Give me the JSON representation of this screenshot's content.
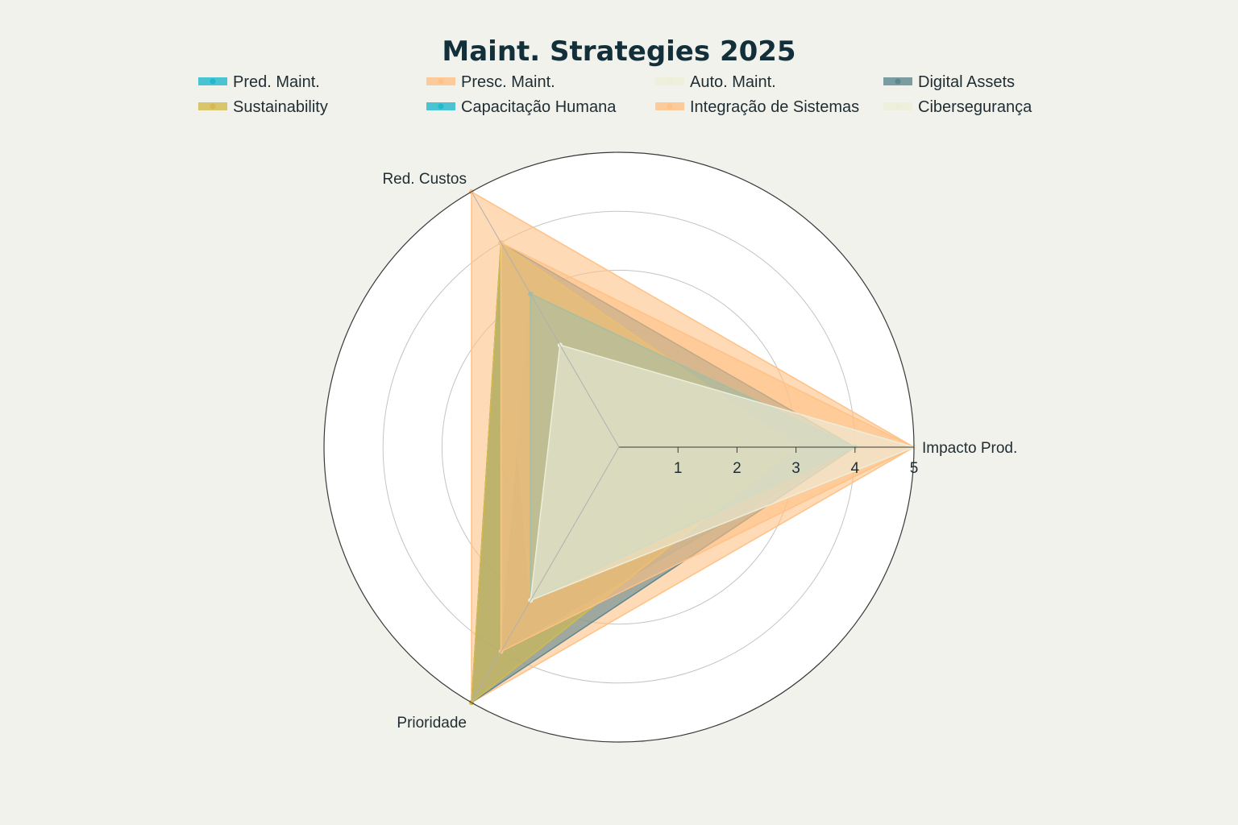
{
  "chart_data": {
    "type": "radar",
    "title": "Maint. Strategies 2025",
    "axes": [
      "Impacto Prod.",
      "Red. Custos",
      "Prioridade"
    ],
    "r_range": [
      0,
      5
    ],
    "r_ticks": [
      "1",
      "2",
      "3",
      "4",
      "5"
    ],
    "grid": true,
    "legend_position": "top",
    "series": [
      {
        "name": "Pred. Maint.",
        "values": [
          4,
          3,
          4
        ],
        "color": "#1fb8cd"
      },
      {
        "name": "Presc. Maint.",
        "values": [
          5,
          5,
          5
        ],
        "color": "#ffc185"
      },
      {
        "name": "Auto. Maint.",
        "values": [
          3,
          4,
          3
        ],
        "color": "#eceeda"
      },
      {
        "name": "Digital Assets",
        "values": [
          4,
          4,
          5
        ],
        "color": "#5d878f"
      },
      {
        "name": "Sustainability",
        "values": [
          3,
          4,
          5
        ],
        "color": "#d2ba4c"
      },
      {
        "name": "Capacitação Humana",
        "values": [
          4,
          3,
          3
        ],
        "color": "#1fb8cd"
      },
      {
        "name": "Integração de Sistemas",
        "values": [
          5,
          4,
          4
        ],
        "color": "#ffc185"
      },
      {
        "name": "Cibersegurança",
        "values": [
          5,
          2,
          3
        ],
        "color": "#eceeda"
      }
    ]
  }
}
